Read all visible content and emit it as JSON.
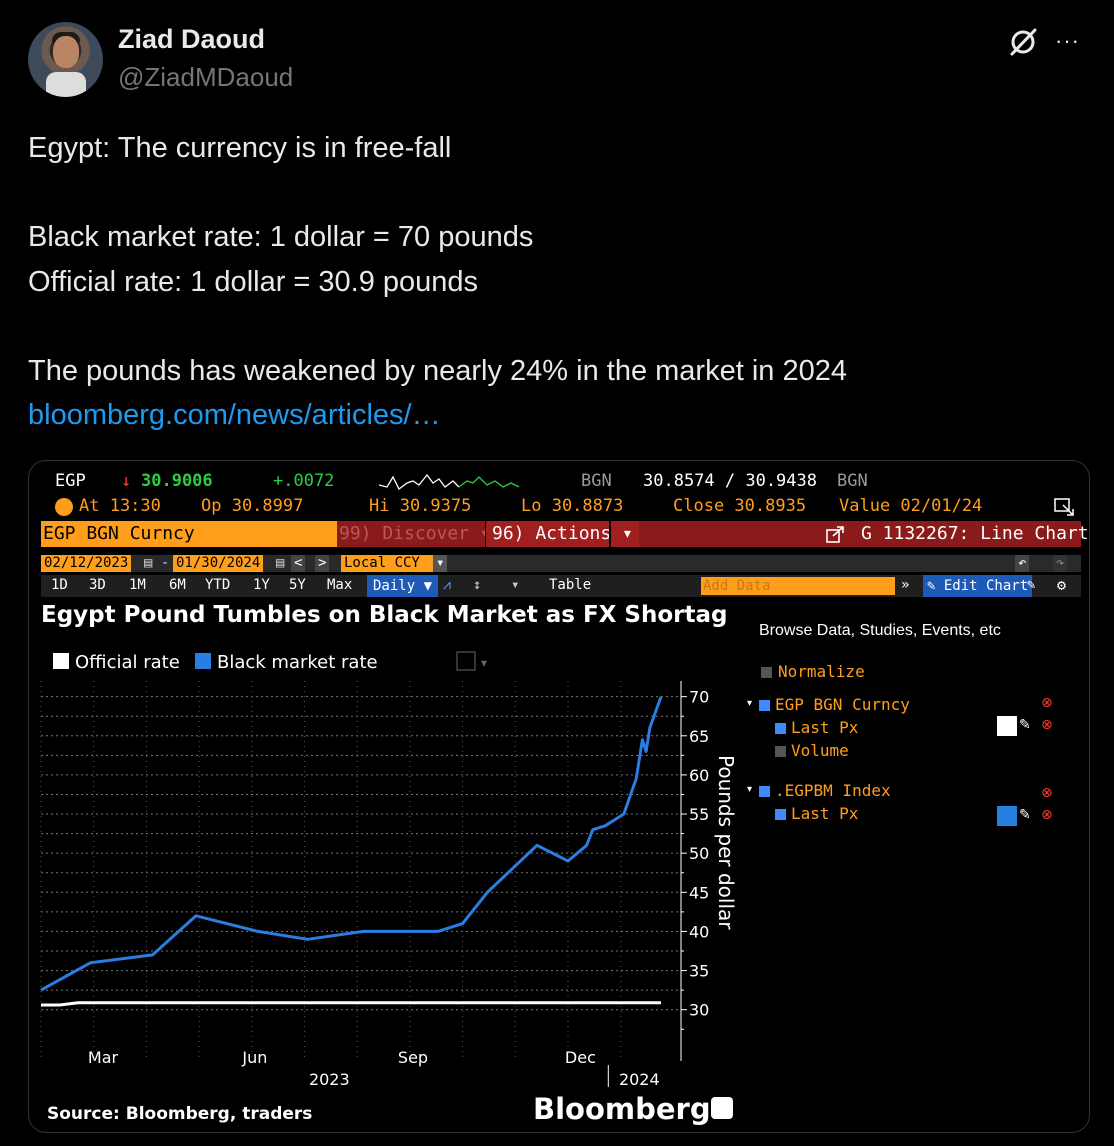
{
  "tweet": {
    "display_name": "Ziad Daoud",
    "handle": "@ZiadMDaoud",
    "lines": [
      "Egypt: The currency is in free-fall",
      "",
      "Black market rate: 1 dollar = 70 pounds",
      "Official rate: 1 dollar = 30.9 pounds",
      "",
      "The pounds has weakened by nearly 24% in the market in 2024"
    ],
    "link": "bloomberg.com/news/articles/…",
    "more_label": "···"
  },
  "terminal": {
    "ticker": "EGP",
    "arrow": "↓",
    "last": "30.9006",
    "change": "+.0072",
    "source1": "BGN",
    "bid_ask": "30.8574 / 30.9438",
    "source2": "BGN",
    "at_label": "At 13:30",
    "open_label": "Op 30.8997",
    "hi_label": "Hi 30.9375",
    "lo_label": "Lo 30.8873",
    "close_label": "Close 30.8935",
    "value_label": "Value 02/01/24",
    "security": "EGP BGN Curncy",
    "discover": "99) Discover ▾",
    "actions": "96) Actions ▾",
    "chart_id": "G 1132267: Line Chart",
    "start_date": "02/12/2023",
    "end_date": "01/30/2024",
    "currency": "Local CCY",
    "periods": [
      "1D",
      "3D",
      "1M",
      "6M",
      "YTD",
      "1Y",
      "5Y",
      "Max"
    ],
    "frequency": "Daily ▼",
    "table_label": "Table",
    "add_data": "Add Data",
    "edit_chart": "Edit Chart"
  },
  "panel": {
    "browse": "Browse Data, Studies, Events, etc",
    "normalize": "Normalize",
    "series1": "EGP BGN Curncy",
    "series1_sub1": "Last Px",
    "series1_sub2": "Volume",
    "series2": ".EGPBM Index",
    "series2_sub1": "Last Px"
  },
  "chart_data": {
    "type": "line",
    "title": "Egypt Pound Tumbles on Black Market as FX Shortag",
    "ylabel": "Pounds per dollar",
    "ylim": [
      26,
      72
    ],
    "yticks": [
      30,
      35,
      40,
      45,
      50,
      55,
      60,
      65,
      70
    ],
    "x_tick_labels": [
      "Mar",
      "Jun",
      "Sep",
      "Dec"
    ],
    "year_labels": [
      "2023",
      "2024"
    ],
    "source": "Source: Bloomberg, traders",
    "brand": "Bloomberg",
    "legend": [
      "Official rate",
      "Black market rate"
    ],
    "series": [
      {
        "name": "Official rate",
        "color": "#ffffff",
        "points": [
          [
            0,
            30.6
          ],
          [
            3,
            30.6
          ],
          [
            6,
            30.9
          ],
          [
            20,
            30.9
          ],
          [
            100,
            30.9
          ]
        ]
      },
      {
        "name": "Black market rate",
        "color": "#2a7de1",
        "points": [
          [
            0,
            32.5
          ],
          [
            8,
            36.0
          ],
          [
            18,
            37.0
          ],
          [
            25,
            42.0
          ],
          [
            35,
            40.0
          ],
          [
            43,
            39.0
          ],
          [
            52,
            40.0
          ],
          [
            64,
            40.0
          ],
          [
            68,
            41.0
          ],
          [
            72,
            45.0
          ],
          [
            80,
            51.0
          ],
          [
            85,
            49.0
          ],
          [
            88,
            51.0
          ],
          [
            89,
            53.0
          ],
          [
            91,
            53.5
          ],
          [
            94,
            55.0
          ],
          [
            96,
            59.5
          ],
          [
            97,
            64.5
          ],
          [
            97.6,
            63.0
          ],
          [
            98.2,
            66.0
          ],
          [
            100,
            70.0
          ]
        ]
      }
    ]
  },
  "colors": {
    "accent_blue": "#1d9bf0",
    "bloomberg_orange": "#ff9e1b",
    "bloomberg_red": "#8b1a1a"
  }
}
